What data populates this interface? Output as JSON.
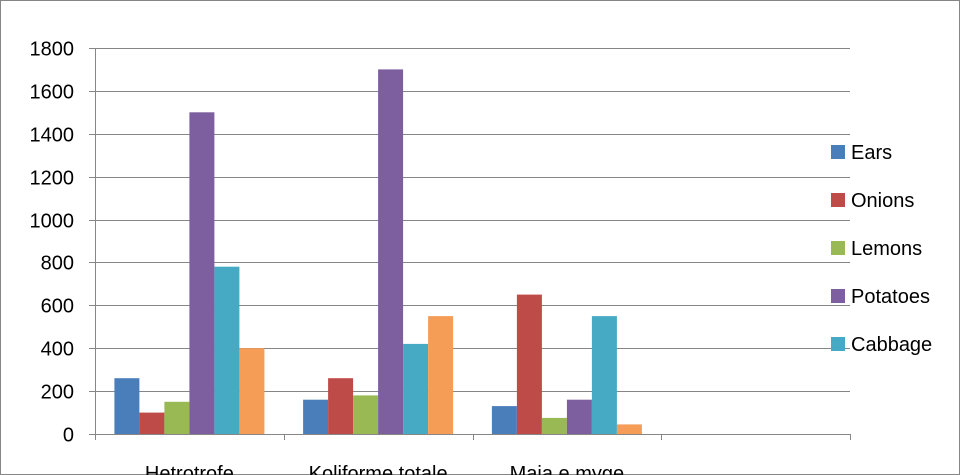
{
  "chart_data": {
    "type": "bar",
    "title": "",
    "xlabel": "",
    "ylabel": "",
    "categories": [
      "Hetrotrofe",
      "Koliforme totale",
      "Maja e myge",
      ""
    ],
    "ylim": [
      0,
      1800
    ],
    "yticks": [
      0,
      200,
      400,
      600,
      800,
      1000,
      1200,
      1400,
      1600,
      1800
    ],
    "grid": true,
    "legend_position": "right",
    "series": [
      {
        "name": "Ears",
        "color": "#4A7EBB",
        "values": [
          260,
          160,
          130,
          null
        ]
      },
      {
        "name": "Onions",
        "color": "#BE4B48",
        "values": [
          100,
          260,
          650,
          null
        ]
      },
      {
        "name": "Lemons",
        "color": "#98B954",
        "values": [
          150,
          180,
          75,
          null
        ]
      },
      {
        "name": "Potatoes",
        "color": "#7D5FA0",
        "values": [
          1500,
          1700,
          160,
          null
        ]
      },
      {
        "name": "Cabbage",
        "color": "#46AAC5",
        "values": [
          780,
          420,
          550,
          null
        ]
      },
      {
        "name": "",
        "color": "#F59D56",
        "values": [
          400,
          550,
          45,
          null
        ]
      }
    ]
  }
}
